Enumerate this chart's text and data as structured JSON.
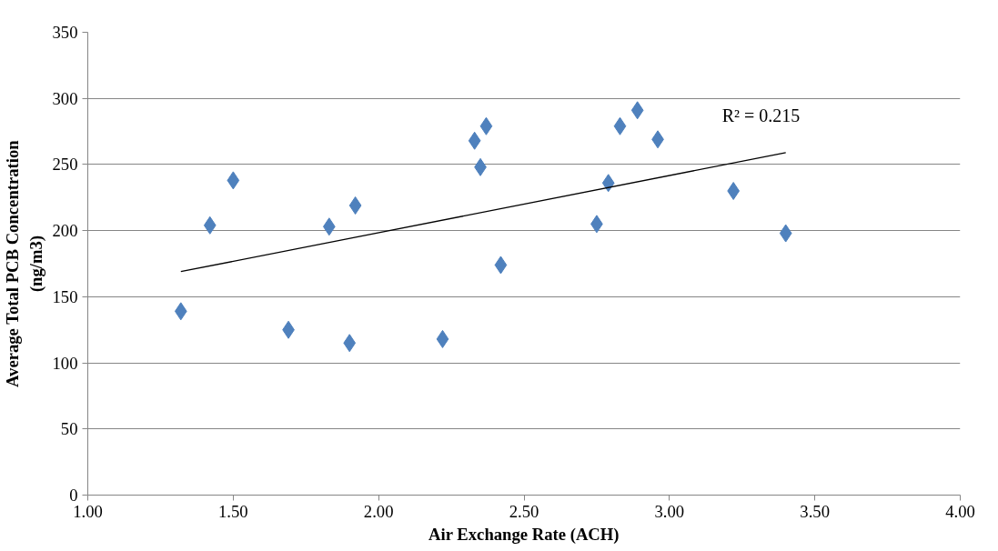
{
  "chart_data": {
    "type": "scatter",
    "xlabel": "Air Exchange Rate (ACH)",
    "ylabel": "Average Total PCB Concentration\n(ng/m3)",
    "xlim": [
      1,
      4
    ],
    "ylim": [
      0,
      350
    ],
    "xticks": [
      {
        "value": 1,
        "label": "1.00"
      },
      {
        "value": 1.5,
        "label": "1.50"
      },
      {
        "value": 2,
        "label": "2.00"
      },
      {
        "value": 2.5,
        "label": "2.50"
      },
      {
        "value": 3,
        "label": "3.00"
      },
      {
        "value": 3.5,
        "label": "3.50"
      },
      {
        "value": 4,
        "label": "4.00"
      }
    ],
    "yticks": [
      0,
      50,
      100,
      150,
      200,
      250,
      300,
      350
    ],
    "grid": "y",
    "annotations": [
      "R² = 0.215"
    ],
    "series": [
      {
        "marker": "diamond",
        "color": "#4f81bd",
        "x": [
          1.32,
          1.42,
          1.5,
          1.69,
          1.83,
          1.9,
          1.92,
          2.22,
          2.33,
          2.35,
          2.37,
          2.42,
          2.75,
          2.79,
          2.83,
          2.89,
          2.96,
          3.22,
          3.4
        ],
        "values": [
          139,
          204,
          238,
          125,
          203,
          115,
          219,
          118,
          268,
          248,
          279,
          174,
          205,
          236,
          279,
          291,
          269,
          230,
          198
        ]
      },
      {
        "type": "line",
        "marker": "none",
        "color": "#000000",
        "x": [
          1.32,
          3.4
        ],
        "values": [
          169,
          259
        ]
      }
    ]
  }
}
